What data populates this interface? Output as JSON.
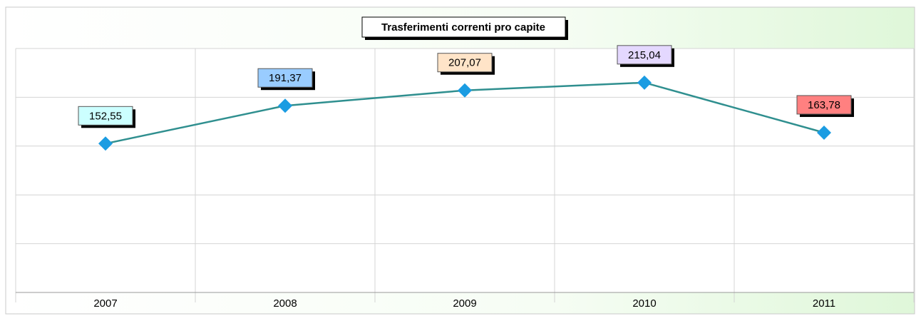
{
  "chart_data": {
    "type": "line",
    "title": "Trasferimenti correnti pro capite",
    "categories": [
      "2007",
      "2008",
      "2009",
      "2010",
      "2011"
    ],
    "values": [
      152.55,
      191.37,
      207.07,
      215.04,
      163.78
    ],
    "value_labels": [
      "152,55",
      "191,37",
      "207,07",
      "215,04",
      "163,78"
    ],
    "label_colors": [
      "#ccffff",
      "#99ccff",
      "#ffe4c8",
      "#e4d8ff",
      "#ff8080"
    ],
    "color": "#2f8f8f",
    "marker_color": "#1b9ce2",
    "ylim": [
      0,
      250
    ],
    "yticks": [
      0,
      50,
      100,
      150,
      200,
      250
    ],
    "grid": true
  }
}
